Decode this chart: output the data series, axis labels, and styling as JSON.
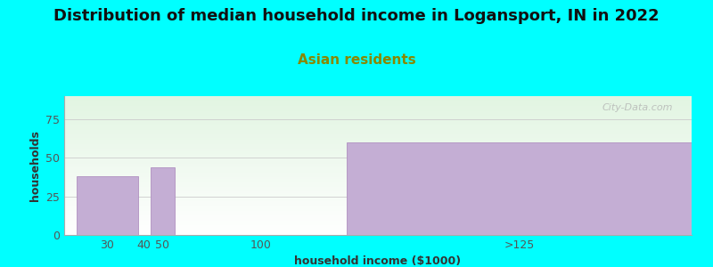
{
  "title": "Distribution of median household income in Logansport, IN in 2022",
  "subtitle": "Asian residents",
  "xlabel": "household income ($1000)",
  "ylabel": "households",
  "categories": [
    "30",
    "40",
    "50",
    "100",
    ">125"
  ],
  "bar_lefts": [
    15,
    40,
    45,
    55,
    125
  ],
  "bar_rights": [
    40,
    45,
    55,
    125,
    265
  ],
  "bar_heights": [
    38,
    0,
    44,
    0,
    60
  ],
  "bar_color": "#c4aed4",
  "bar_edgecolor": "#b090c0",
  "tick_positions": [
    27.5,
    42.5,
    50,
    90,
    195
  ],
  "xlim": [
    10,
    265
  ],
  "ylim": [
    0,
    90
  ],
  "yticks": [
    0,
    25,
    50,
    75
  ],
  "background_color": "#00ffff",
  "plot_bg_colors": [
    "#dff5df",
    "#f5fff5",
    "#ffffff"
  ],
  "title_fontsize": 13,
  "subtitle_fontsize": 11,
  "subtitle_color": "#888800",
  "axis_label_fontsize": 9,
  "tick_fontsize": 9,
  "watermark": "City-Data.com",
  "grid_color": "#cccccc",
  "title_color": "#111111"
}
